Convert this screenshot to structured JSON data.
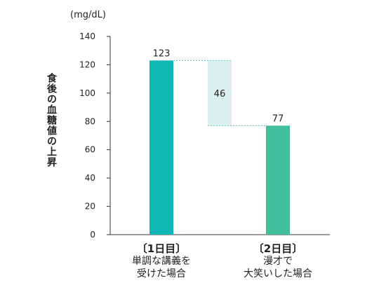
{
  "chart_data": {
    "type": "bar",
    "unit": "(mg/dL)",
    "ylabel": "食後の血糖値の上昇",
    "ylim": [
      0,
      140
    ],
    "yticks": [
      0,
      20,
      40,
      60,
      80,
      100,
      120,
      140
    ],
    "categories": [
      {
        "head": "〔1日目〕",
        "line1": "単調な講義を",
        "line2": "受けた場合"
      },
      {
        "head": "〔2日目〕",
        "line1": "漫才で",
        "line2": "大笑いした場合"
      }
    ],
    "values": [
      123,
      77
    ],
    "difference": {
      "value": 46,
      "from": 123,
      "to": 77
    },
    "colors": {
      "bar1": "#10b6b3",
      "bar2": "#41bf9c",
      "diff": "#dbefef",
      "guide": "#5cc6c6",
      "axis": "#333333"
    }
  }
}
